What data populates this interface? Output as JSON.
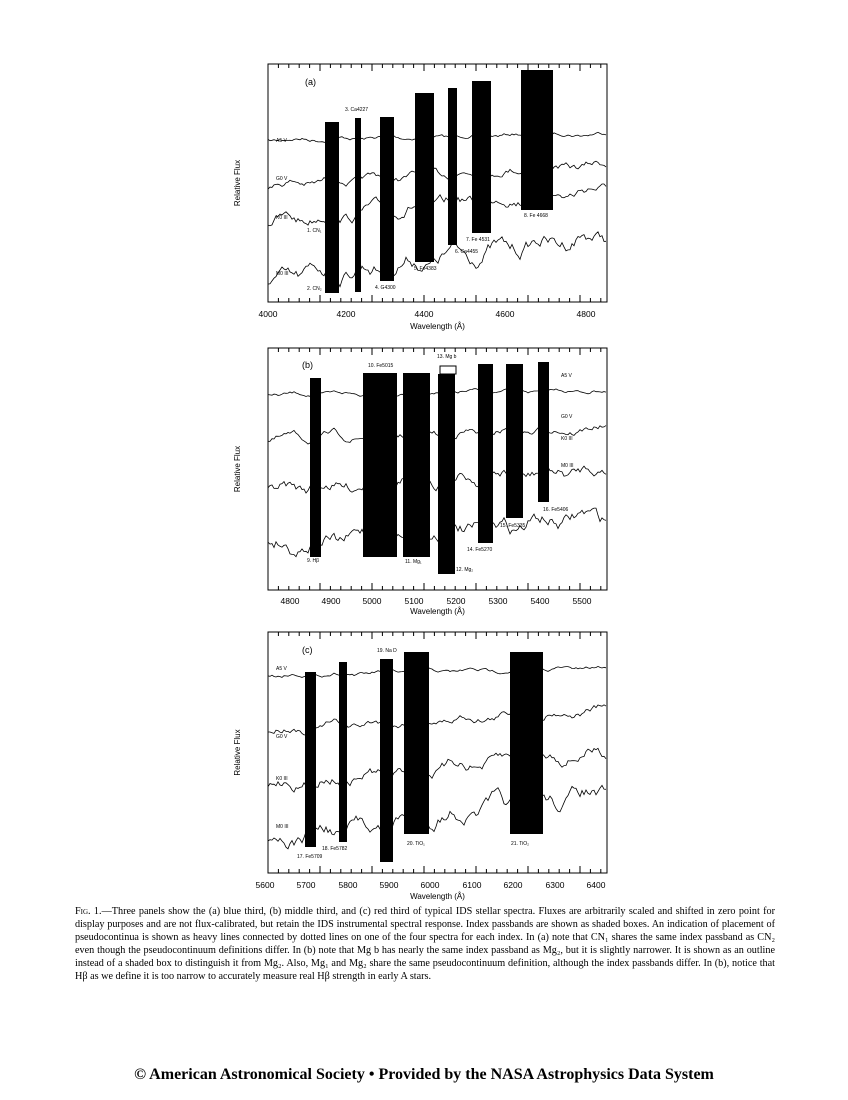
{
  "figure": {
    "panels": [
      {
        "label": "(a)",
        "y_label": "Relative Flux",
        "x_label": "Wavelength (Å)",
        "x_ticks": [
          "4000",
          "4200",
          "4400",
          "4600",
          "4800"
        ],
        "stars": [
          "A5 V",
          "G0 V",
          "K0 III",
          "M0 III"
        ],
        "indices": [
          "1. CN₁",
          "2. CN₂",
          "3. Ca4227",
          "4. G4300",
          "5. Fe4383",
          "6. Ca4455",
          "7. Fe 4531",
          "8. Fe 4668"
        ]
      },
      {
        "label": "(b)",
        "y_label": "Relative Flux",
        "x_label": "Wavelength (Å)",
        "x_ticks": [
          "4800",
          "4900",
          "5000",
          "5100",
          "5200",
          "5300",
          "5400",
          "5500"
        ],
        "stars": [
          "A5 V",
          "G0 V",
          "K0 III",
          "M0 III"
        ],
        "indices": [
          "9. Hβ",
          "10. Fe5015",
          "11. Mg₁",
          "12. Mg₂",
          "13. Mg b",
          "14. Fe5270",
          "15. Fe5335",
          "16. Fe5406"
        ]
      },
      {
        "label": "(c)",
        "y_label": "Relative Flux",
        "x_label": "Wavelength (Å)",
        "x_ticks": [
          "5600",
          "5700",
          "5800",
          "5900",
          "6000",
          "6100",
          "6200",
          "6300",
          "6400"
        ],
        "stars": [
          "A5 V",
          "G0 V",
          "K0 III",
          "M0 III"
        ],
        "indices": [
          "17. Fe5709",
          "18. Fe5782",
          "19. Na D",
          "20. TiO₁",
          "21. TiO₂"
        ]
      }
    ],
    "caption": {
      "label": "Fig. 1.",
      "text": "—Three panels show the (a) blue third, (b) middle third, and (c) red third of typical IDS stellar spectra. Fluxes are arbitrarily scaled and shifted in zero point for display purposes and are not flux-calibrated, but retain the IDS instrumental spectral response. Index passbands are shown as shaded boxes. An indication of placement of pseudocontinua is shown as heavy lines connected by dotted lines on one of the four spectra for each index. In (a) note that CN₁ shares the same index passband as CN₂ even though the pseudocontinuum definitions differ. In (b) note that Mg b has nearly the same index passband as Mg₂, but it is slightly narrower. It is shown as an outline instead of a shaded box to distinguish it from Mg₂. Also, Mg₁ and Mg₂ share the same pseudocontinuum definition, although the index passbands differ. In (b), notice that Hβ as we define it is too narrow to accurately measure real Hβ strength in early A stars."
    }
  },
  "footer": "© American Astronomical Society • Provided by the NASA Astrophysics Data System"
}
